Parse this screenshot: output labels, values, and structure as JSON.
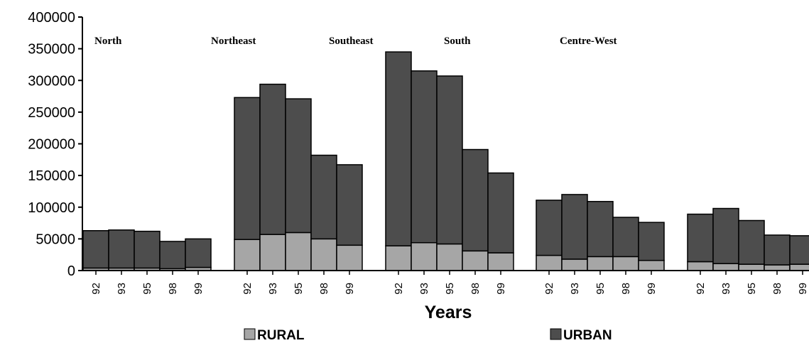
{
  "chart_data": {
    "type": "bar",
    "stacked": true,
    "xlabel": "Years",
    "ylabel": "",
    "ylim": [
      0,
      400000
    ],
    "yticks": [
      0,
      50000,
      100000,
      150000,
      200000,
      250000,
      300000,
      350000,
      400000
    ],
    "legend_position": "bottom",
    "colors": {
      "RURAL": "#a6a6a6",
      "URBAN": "#4d4d4d"
    },
    "groups": [
      {
        "region": "North",
        "categories": [
          "92",
          "93",
          "95",
          "98",
          "99"
        ],
        "series": [
          {
            "name": "RURAL",
            "values": [
              4000,
              4000,
              4000,
              3000,
              5000
            ]
          },
          {
            "name": "URBAN",
            "values": [
              59000,
              60000,
              58000,
              43000,
              45000
            ]
          }
        ]
      },
      {
        "region": "Northeast",
        "categories": [
          "92",
          "93",
          "95",
          "98",
          "99"
        ],
        "series": [
          {
            "name": "RURAL",
            "values": [
              49000,
              57000,
              60000,
              50000,
              40000
            ]
          },
          {
            "name": "URBAN",
            "values": [
              224000,
              237000,
              211000,
              132000,
              127000
            ]
          }
        ]
      },
      {
        "region": "Southeast",
        "categories": [
          "92",
          "93",
          "95",
          "98",
          "99"
        ],
        "series": [
          {
            "name": "RURAL",
            "values": [
              39000,
              44000,
              42000,
              31000,
              28000
            ]
          },
          {
            "name": "URBAN",
            "values": [
              306000,
              271000,
              265000,
              160000,
              126000
            ]
          }
        ]
      },
      {
        "region": "South",
        "categories": [
          "92",
          "93",
          "95",
          "98",
          "99"
        ],
        "series": [
          {
            "name": "RURAL",
            "values": [
              24000,
              18000,
              22000,
              22000,
              16000
            ]
          },
          {
            "name": "URBAN",
            "values": [
              87000,
              102000,
              87000,
              62000,
              60000
            ]
          }
        ]
      },
      {
        "region": "Centre-West",
        "categories": [
          "92",
          "93",
          "95",
          "98",
          "99"
        ],
        "series": [
          {
            "name": "RURAL",
            "values": [
              14000,
              11000,
              10000,
              9000,
              10000
            ]
          },
          {
            "name": "URBAN",
            "values": [
              75000,
              87000,
              69000,
              47000,
              45000
            ]
          }
        ]
      }
    ]
  }
}
